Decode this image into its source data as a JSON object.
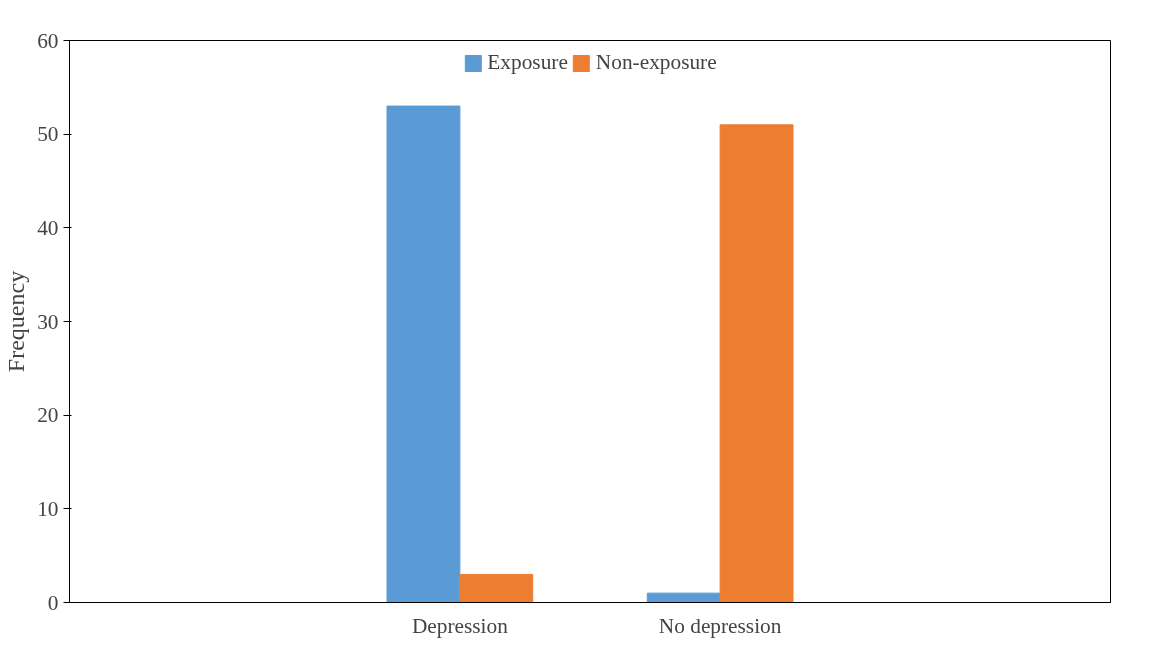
{
  "chart_data": {
    "type": "bar",
    "ylabel": "Frequency",
    "categories": [
      null,
      "Depression",
      "No depression",
      null
    ],
    "series": [
      {
        "name": "Exposure",
        "color": "#5b9bd5",
        "values": [
          null,
          53,
          1,
          null
        ]
      },
      {
        "name": "Non-exposure",
        "color": "#ed7d31",
        "values": [
          null,
          3,
          51,
          null
        ]
      }
    ],
    "ylim": [
      0,
      60
    ],
    "yticks": [
      0,
      10,
      20,
      30,
      40,
      50,
      60
    ],
    "grid": false,
    "legend": "top"
  }
}
